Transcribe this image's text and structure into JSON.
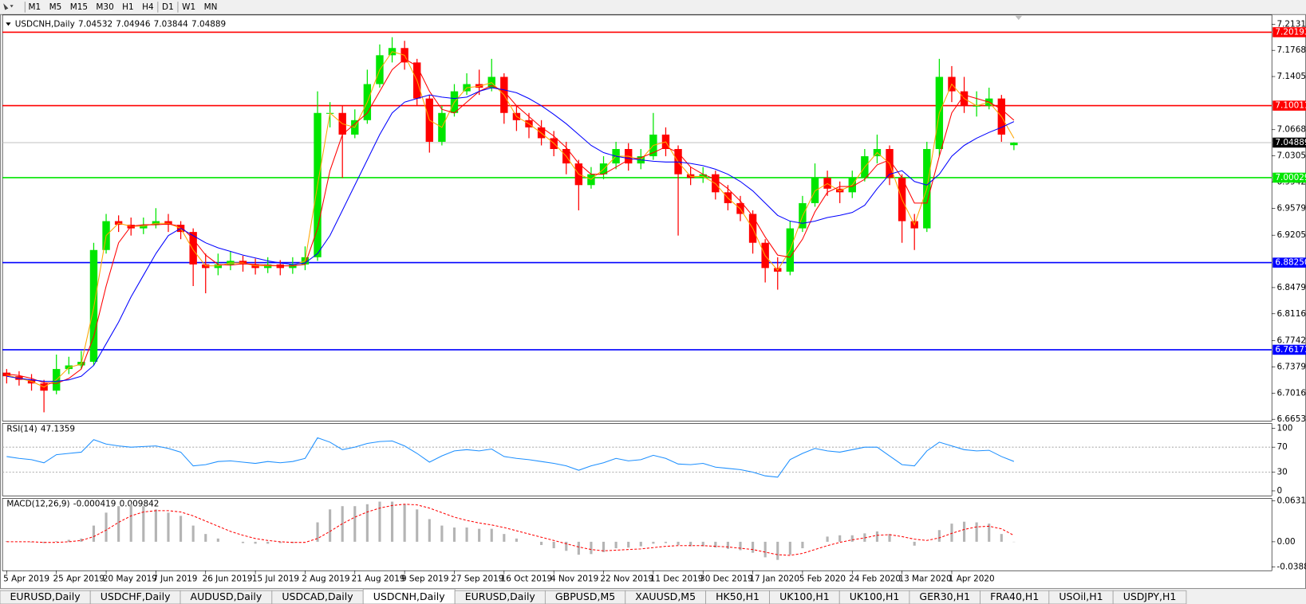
{
  "toolbar": {
    "timeframes": [
      "M1",
      "M5",
      "M15",
      "M30",
      "H1",
      "H4",
      "D1",
      "W1",
      "MN"
    ]
  },
  "chart_data": {
    "type": "candlestick",
    "symbol": "USDCNH,Daily",
    "categories": [
      "5 Apr 2019",
      null,
      null,
      null,
      "25 Apr 2019",
      null,
      null,
      null,
      "20 May 2019",
      null,
      null,
      null,
      "7 Jun 2019",
      null,
      null,
      null,
      "26 Jun 2019",
      null,
      null,
      null,
      "15 Jul 2019",
      null,
      null,
      null,
      "2 Aug 2019",
      null,
      null,
      null,
      "21 Aug 2019",
      null,
      null,
      null,
      "9 Sep 2019",
      null,
      null,
      null,
      "27 Sep 2019",
      null,
      null,
      null,
      "16 Oct 2019",
      null,
      null,
      null,
      "4 Nov 2019",
      null,
      null,
      null,
      "22 Nov 2019",
      null,
      null,
      null,
      "11 Dec 2019",
      null,
      null,
      null,
      "30 Dec 2019",
      null,
      null,
      null,
      "17 Jan 2020",
      null,
      null,
      null,
      "5 Feb 2020",
      null,
      null,
      null,
      "24 Feb 2020",
      null,
      null,
      null,
      "13 Mar 2020",
      null,
      null,
      null,
      "1 Apr 2020",
      null,
      null,
      null,
      null,
      null
    ],
    "open": [
      6.73,
      6.725,
      6.72,
      6.715,
      6.705,
      6.735,
      6.74,
      6.745,
      6.9,
      6.94,
      6.935,
      6.93,
      6.935,
      6.94,
      6.935,
      6.925,
      6.88,
      6.875,
      6.88,
      6.885,
      6.88,
      6.875,
      6.88,
      6.875,
      6.88,
      6.89,
      7.09,
      7.09,
      7.06,
      7.08,
      7.13,
      7.17,
      7.18,
      7.16,
      7.11,
      7.05,
      7.09,
      7.12,
      7.13,
      7.125,
      7.14,
      7.09,
      7.08,
      7.07,
      7.055,
      7.04,
      7.02,
      6.99,
      7.005,
      7.02,
      7.04,
      7.02,
      7.03,
      7.06,
      7.04,
      7.005,
      7.0,
      7.005,
      6.98,
      6.965,
      6.95,
      6.91,
      6.875,
      6.87,
      6.93,
      6.965,
      7.0,
      6.985,
      6.98,
      7.0,
      7.03,
      7.04,
      7.0,
      6.94,
      6.93,
      7.04,
      7.14,
      7.12,
      7.1,
      7.1,
      7.11,
      7.04532
    ],
    "high": [
      6.735,
      6.732,
      6.728,
      6.72,
      6.755,
      6.752,
      6.76,
      6.91,
      6.95,
      6.948,
      6.945,
      6.945,
      6.958,
      6.95,
      6.94,
      6.93,
      6.895,
      6.895,
      6.898,
      6.892,
      6.888,
      6.89,
      6.886,
      6.89,
      6.905,
      7.12,
      7.105,
      7.1,
      7.095,
      7.15,
      7.185,
      7.195,
      7.19,
      7.165,
      7.115,
      7.1,
      7.13,
      7.145,
      7.15,
      7.165,
      7.145,
      7.1,
      7.09,
      7.08,
      7.065,
      7.05,
      7.025,
      7.015,
      7.03,
      7.05,
      7.048,
      7.04,
      7.09,
      7.07,
      7.045,
      7.015,
      7.015,
      7.01,
      6.99,
      6.975,
      6.955,
      6.915,
      6.89,
      6.94,
      6.975,
      7.02,
      7.01,
      6.995,
      7.01,
      7.04,
      7.06,
      7.045,
      7.005,
      6.95,
      7.05,
      7.165,
      7.155,
      7.14,
      7.12,
      7.125,
      7.115,
      7.04946
    ],
    "low": [
      6.715,
      6.712,
      6.705,
      6.675,
      6.7,
      6.728,
      6.735,
      6.74,
      6.895,
      6.925,
      6.92,
      6.922,
      6.93,
      6.925,
      6.915,
      6.85,
      6.84,
      6.865,
      6.872,
      6.87,
      6.866,
      6.868,
      6.865,
      6.867,
      6.872,
      6.885,
      7.07,
      7.0,
      7.055,
      7.075,
      7.125,
      7.16,
      7.15,
      7.1,
      7.035,
      7.045,
      7.085,
      7.115,
      7.115,
      7.12,
      7.075,
      7.065,
      7.055,
      7.045,
      7.03,
      7.005,
      6.955,
      6.985,
      6.998,
      7.012,
      7.01,
      7.012,
      7.025,
      7.03,
      6.92,
      6.99,
      6.993,
      6.97,
      6.955,
      6.94,
      6.895,
      6.855,
      6.845,
      6.865,
      6.925,
      6.96,
      6.975,
      6.965,
      6.972,
      6.995,
      7.02,
      6.99,
      6.91,
      6.9,
      6.925,
      7.03,
      7.105,
      7.09,
      7.085,
      7.095,
      7.05,
      7.03844
    ],
    "close": [
      6.725,
      6.72,
      6.715,
      6.705,
      6.735,
      6.74,
      6.745,
      6.9,
      6.94,
      6.935,
      6.93,
      6.935,
      6.94,
      6.935,
      6.925,
      6.88,
      6.875,
      6.88,
      6.885,
      6.88,
      6.875,
      6.88,
      6.875,
      6.88,
      6.89,
      7.09,
      7.09,
      7.06,
      7.08,
      7.13,
      7.17,
      7.18,
      7.16,
      7.11,
      7.05,
      7.09,
      7.12,
      7.13,
      7.125,
      7.14,
      7.09,
      7.08,
      7.07,
      7.055,
      7.04,
      7.02,
      6.99,
      7.005,
      7.02,
      7.04,
      7.02,
      7.03,
      7.06,
      7.04,
      7.005,
      7.0,
      7.005,
      6.98,
      6.965,
      6.95,
      6.91,
      6.875,
      6.87,
      6.93,
      6.965,
      7.0,
      6.985,
      6.98,
      7.0,
      7.03,
      7.04,
      7.0,
      6.94,
      6.93,
      7.04,
      7.14,
      7.12,
      7.1,
      7.1,
      7.11,
      7.06,
      7.04889
    ],
    "up_color": "#00e600",
    "down_color": "#ff0000",
    "ylim": [
      6.663,
      7.2258
    ],
    "yticks": [
      {
        "value": 7.2131,
        "label": "7.21310"
      },
      {
        "value": 7.1768,
        "label": "7.17680"
      },
      {
        "value": 7.1405,
        "label": "7.14050"
      },
      {
        "value": 7.0668,
        "label": "7.06680"
      },
      {
        "value": 7.0305,
        "label": "7.03050"
      },
      {
        "value": 6.9942,
        "label": "6.99420"
      },
      {
        "value": 6.9579,
        "label": "6.95790"
      },
      {
        "value": 6.9205,
        "label": "6.92050"
      },
      {
        "value": 6.8479,
        "label": "6.84790"
      },
      {
        "value": 6.8116,
        "label": "6.81160"
      },
      {
        "value": 6.7742,
        "label": "6.77420"
      },
      {
        "value": 6.7379,
        "label": "6.73790"
      },
      {
        "value": 6.7016,
        "label": "6.70160"
      },
      {
        "value": 6.6653,
        "label": "6.66530"
      }
    ],
    "levels": [
      {
        "value": 7.20193,
        "color": "#ff0000"
      },
      {
        "value": 7.10011,
        "color": "#ff0000"
      },
      {
        "value": 7.00029,
        "color": "#00e600"
      },
      {
        "value": 6.8825,
        "label": "6.88250",
        "color": "#0000ff"
      },
      {
        "value": 6.76171,
        "color": "#0000ff"
      }
    ],
    "current_line_color": "#c0c0c0",
    "moving_averages": [
      {
        "color": "#ffa500",
        "values": [
          6.727,
          6.722,
          6.718,
          6.71,
          6.72,
          6.737,
          6.742,
          6.82,
          6.92,
          6.937,
          6.933,
          6.933,
          6.937,
          6.937,
          6.93,
          6.9,
          6.878,
          6.878,
          6.882,
          6.882,
          6.878,
          6.878,
          6.878,
          6.878,
          6.885,
          6.99,
          7.09,
          7.075,
          7.07,
          7.105,
          7.15,
          7.175,
          7.17,
          7.135,
          7.08,
          7.07,
          7.105,
          7.125,
          7.127,
          7.132,
          7.115,
          7.085,
          7.075,
          7.062,
          7.048,
          7.03,
          7.005,
          6.998,
          7.012,
          7.03,
          7.03,
          7.025,
          7.045,
          7.05,
          7.022,
          7.002,
          7.002,
          6.992,
          6.972,
          6.957,
          6.93,
          6.892,
          6.872,
          6.9,
          6.947,
          6.982,
          6.992,
          6.982,
          6.99,
          7.015,
          7.035,
          7.02,
          6.97,
          6.935,
          6.985,
          7.09,
          7.13,
          7.11,
          7.1,
          7.105,
          7.085,
          7.055
        ]
      },
      {
        "color": "#ff0000",
        "values": [
          6.728,
          6.726,
          6.722,
          6.716,
          6.715,
          6.722,
          6.735,
          6.78,
          6.85,
          6.91,
          6.933,
          6.935,
          6.935,
          6.936,
          6.933,
          6.915,
          6.893,
          6.88,
          6.879,
          6.881,
          6.88,
          6.879,
          6.878,
          6.878,
          6.88,
          6.93,
          7.01,
          7.06,
          7.075,
          7.09,
          7.12,
          7.15,
          7.165,
          7.155,
          7.12,
          7.095,
          7.09,
          7.105,
          7.12,
          7.128,
          7.12,
          7.1,
          7.085,
          7.07,
          7.058,
          7.042,
          7.02,
          7.005,
          7.005,
          7.015,
          7.025,
          7.028,
          7.035,
          7.043,
          7.035,
          7.015,
          7.005,
          6.998,
          6.985,
          6.968,
          6.947,
          6.918,
          6.893,
          6.89,
          6.915,
          6.953,
          6.98,
          6.988,
          6.988,
          6.998,
          7.018,
          7.025,
          7.0,
          6.965,
          6.965,
          7.03,
          7.09,
          7.115,
          7.11,
          7.105,
          7.095,
          7.08
        ]
      },
      {
        "color": "#0000ff",
        "values": [
          6.725,
          6.722,
          6.72,
          6.718,
          6.718,
          6.72,
          6.725,
          6.74,
          6.77,
          6.8,
          6.835,
          6.865,
          6.895,
          6.92,
          6.93,
          6.92,
          6.91,
          6.903,
          6.898,
          6.893,
          6.889,
          6.885,
          6.882,
          6.88,
          6.882,
          6.895,
          6.92,
          6.955,
          6.99,
          7.025,
          7.06,
          7.09,
          7.105,
          7.11,
          7.115,
          7.112,
          7.11,
          7.112,
          7.12,
          7.125,
          7.122,
          7.118,
          7.11,
          7.1,
          7.088,
          7.075,
          7.06,
          7.045,
          7.035,
          7.03,
          7.027,
          7.025,
          7.023,
          7.022,
          7.022,
          7.02,
          7.017,
          7.012,
          7.005,
          6.995,
          6.982,
          6.965,
          6.948,
          6.94,
          6.937,
          6.94,
          6.945,
          6.948,
          6.952,
          6.962,
          6.985,
          7.005,
          7.01,
          6.995,
          6.99,
          7.005,
          7.03,
          7.045,
          7.055,
          7.063,
          7.07,
          7.078
        ]
      }
    ],
    "panels": [
      {
        "type": "line",
        "name": "RSI(14)",
        "color": "#1e90ff",
        "ylim": [
          -8,
          108
        ],
        "yticks": [
          100,
          70,
          30,
          0
        ],
        "dotted_levels": [
          70,
          30
        ],
        "values": [
          55,
          52,
          50,
          45,
          58,
          60,
          62,
          82,
          75,
          72,
          70,
          71,
          72,
          68,
          62,
          40,
          42,
          47,
          48,
          46,
          44,
          47,
          45,
          47,
          52,
          85,
          78,
          66,
          70,
          76,
          79,
          80,
          72,
          60,
          46,
          56,
          64,
          66,
          64,
          67,
          55,
          52,
          50,
          47,
          44,
          40,
          33,
          40,
          45,
          52,
          48,
          50,
          57,
          52,
          43,
          42,
          44,
          38,
          36,
          34,
          30,
          24,
          22,
          50,
          60,
          68,
          64,
          62,
          66,
          70,
          70,
          56,
          42,
          40,
          64,
          78,
          72,
          66,
          64,
          65,
          55,
          47.1359
        ]
      },
      {
        "type": "macd",
        "name": "MACD(12,26,9)",
        "histogram_color": "#b4b4b4",
        "signal_color": "#ff0000",
        "ylim": [
          -0.0447,
          0.0671
        ],
        "yticks": [
          0.063113,
          {
            "value": 0,
            "label": "0.00"
          },
          -0.03887
        ],
        "histogram": [
          0.001,
          0.0,
          -0.001,
          -0.002,
          0.001,
          0.003,
          0.005,
          0.025,
          0.045,
          0.055,
          0.058,
          0.055,
          0.05,
          0.045,
          0.04,
          0.025,
          0.012,
          0.005,
          0.0,
          -0.002,
          -0.003,
          -0.003,
          -0.002,
          -0.002,
          0.0,
          0.03,
          0.05,
          0.055,
          0.055,
          0.058,
          0.062,
          0.062,
          0.058,
          0.05,
          0.035,
          0.025,
          0.022,
          0.022,
          0.02,
          0.02,
          0.012,
          0.005,
          0.0,
          -0.005,
          -0.01,
          -0.014,
          -0.02,
          -0.019,
          -0.016,
          -0.01,
          -0.009,
          -0.007,
          -0.003,
          -0.002,
          -0.005,
          -0.007,
          -0.007,
          -0.009,
          -0.011,
          -0.013,
          -0.017,
          -0.024,
          -0.028,
          -0.02,
          -0.01,
          0.0,
          0.008,
          0.01,
          0.01,
          0.013,
          0.016,
          0.012,
          0.0,
          -0.006,
          0.0,
          0.018,
          0.028,
          0.031,
          0.03,
          0.028,
          0.012,
          -0.000419
        ],
        "signal": [
          0.0,
          0.0,
          0.0,
          -0.001,
          -0.001,
          0.0,
          0.002,
          0.008,
          0.018,
          0.03,
          0.04,
          0.046,
          0.048,
          0.048,
          0.046,
          0.04,
          0.032,
          0.024,
          0.016,
          0.01,
          0.005,
          0.002,
          0.0,
          -0.001,
          -0.001,
          0.005,
          0.016,
          0.028,
          0.038,
          0.046,
          0.052,
          0.056,
          0.058,
          0.057,
          0.052,
          0.045,
          0.038,
          0.033,
          0.029,
          0.026,
          0.022,
          0.017,
          0.012,
          0.007,
          0.002,
          -0.003,
          -0.008,
          -0.012,
          -0.014,
          -0.013,
          -0.012,
          -0.011,
          -0.009,
          -0.007,
          -0.006,
          -0.006,
          -0.006,
          -0.007,
          -0.008,
          -0.01,
          -0.012,
          -0.016,
          -0.02,
          -0.021,
          -0.018,
          -0.012,
          -0.006,
          -0.001,
          0.003,
          0.006,
          0.01,
          0.011,
          0.008,
          0.004,
          0.002,
          0.006,
          0.013,
          0.019,
          0.023,
          0.024,
          0.02,
          0.009842
        ]
      }
    ]
  },
  "tabs": {
    "items": [
      "EURUSD,Daily",
      "USDCHF,Daily",
      "AUDUSD,Daily",
      "USDCAD,Daily",
      "USDCNH,Daily",
      "EURUSD,Daily",
      "GBPUSD,M5",
      "XAUUSD,M5",
      "HK50,H1",
      "UK100,H1",
      "UK100,H1",
      "GER30,H1",
      "FRA40,H1",
      "USOil,H1",
      "USDJPY,H1"
    ],
    "active": 4
  }
}
